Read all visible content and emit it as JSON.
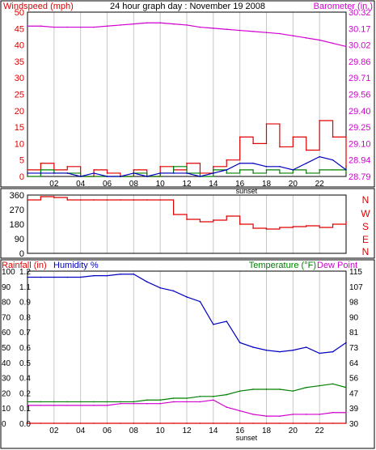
{
  "colors": {
    "red": "#e00000",
    "magenta": "#d000d0",
    "blue": "#0000c0",
    "green": "#008000",
    "grid": "#c8c8c8",
    "axis": "#000000"
  },
  "chart_data": [
    {
      "type": "line",
      "title": "24 hour graph day : November 19 2008",
      "left_label": "Windspeed (mph)",
      "right_label": "Barometer (in.)",
      "x_ticks": [
        "02",
        "04",
        "06",
        "08",
        "10",
        "12",
        "14",
        "16",
        "18",
        "20",
        "22"
      ],
      "x_annotation": "sunset",
      "ylim": [
        0,
        50
      ],
      "y_ticks": [
        "0",
        "5",
        "10",
        "15",
        "20",
        "25",
        "30",
        "35",
        "40",
        "45",
        "50"
      ],
      "y2lim": [
        28.79,
        30.32
      ],
      "y2_ticks": [
        "28.79",
        "28.94",
        "29.10",
        "29.25",
        "29.40",
        "29.56",
        "29.71",
        "29.86",
        "30.02",
        "30.17",
        "30.32"
      ],
      "grid": true,
      "x": [
        0,
        1,
        2,
        3,
        4,
        5,
        6,
        7,
        8,
        9,
        10,
        11,
        12,
        13,
        14,
        15,
        16,
        17,
        18,
        19,
        20,
        21,
        22,
        23,
        24
      ],
      "series": [
        {
          "key": "barometer",
          "axis": "right",
          "values": [
            30.19,
            30.19,
            30.18,
            30.18,
            30.18,
            30.18,
            30.19,
            30.2,
            30.21,
            30.22,
            30.22,
            30.21,
            30.2,
            30.18,
            30.17,
            30.16,
            30.15,
            30.14,
            30.13,
            30.12,
            30.1,
            30.08,
            30.06,
            30.03,
            30.0
          ]
        },
        {
          "key": "wind_gust",
          "axis": "left",
          "values": [
            2,
            4,
            2,
            3,
            0,
            2,
            1,
            0,
            2,
            0,
            3,
            2,
            4,
            1,
            3,
            5,
            12,
            10,
            16,
            9,
            12,
            8,
            17,
            12,
            3
          ]
        },
        {
          "key": "wind_avg",
          "axis": "left",
          "values": [
            1,
            1,
            1,
            1,
            0,
            1,
            0,
            0,
            1,
            0,
            1,
            1,
            1,
            0,
            1,
            2,
            4,
            4,
            3,
            3,
            2,
            4,
            6,
            5,
            2
          ]
        },
        {
          "key": "wind_dir",
          "axis": "left",
          "values": [
            0,
            2,
            1,
            1,
            0,
            0,
            0,
            0,
            1,
            0,
            1,
            3,
            1,
            0,
            2,
            1,
            2,
            1,
            2,
            1,
            2,
            1,
            2,
            2,
            1
          ]
        }
      ]
    },
    {
      "type": "line",
      "right_label": "N W S E N",
      "y_ticks": [
        "360",
        "270",
        "180",
        "90",
        "0"
      ],
      "ylim": [
        0,
        360
      ],
      "x": [
        0,
        1,
        2,
        3,
        4,
        5,
        6,
        7,
        8,
        9,
        10,
        11,
        12,
        13,
        14,
        15,
        16,
        17,
        18,
        19,
        20,
        21,
        22,
        23,
        24
      ],
      "series": [
        {
          "key": "direction",
          "values": [
            330,
            350,
            345,
            330,
            330,
            330,
            330,
            330,
            330,
            330,
            330,
            240,
            210,
            195,
            205,
            230,
            180,
            155,
            150,
            160,
            165,
            170,
            160,
            180,
            195
          ]
        }
      ]
    },
    {
      "type": "line",
      "left_label_rain": "Rainfall (in)",
      "left_label_humidity": "Humidity %",
      "right_label_temp": "Temperature (°F)",
      "right_label_dew": "Dew Point",
      "x_ticks": [
        "02",
        "04",
        "06",
        "08",
        "10",
        "12",
        "14",
        "16",
        "18",
        "20",
        "22"
      ],
      "x_annotation": "sunset",
      "humidity_ticks": [
        "0",
        "10",
        "20",
        "30",
        "40",
        "50",
        "60",
        "70",
        "80",
        "90",
        "100"
      ],
      "humidity_lim": [
        0,
        100
      ],
      "rain_ticks": [
        "0.0",
        "0.1",
        "0.2",
        "0.4",
        "0.5",
        "0.6",
        "0.7",
        "0.8",
        "0.9",
        "1.1",
        "1.2"
      ],
      "rain_lim": [
        0,
        1.2
      ],
      "temp_ticks": [
        "30",
        "39",
        "47",
        "56",
        "64",
        "73",
        "81",
        "90",
        "98",
        "107",
        "115"
      ],
      "temp_lim": [
        30,
        115
      ],
      "x": [
        0,
        1,
        2,
        3,
        4,
        5,
        6,
        7,
        8,
        9,
        10,
        11,
        12,
        13,
        14,
        15,
        16,
        17,
        18,
        19,
        20,
        21,
        22,
        23,
        24
      ],
      "series": [
        {
          "key": "humidity",
          "axis": "humidity",
          "values": [
            96,
            96,
            96,
            96,
            96,
            97,
            97,
            98,
            98,
            93,
            89,
            87,
            83,
            80,
            65,
            67,
            53,
            50,
            48,
            47,
            48,
            50,
            46,
            47,
            53
          ]
        },
        {
          "key": "temperature",
          "axis": "temp",
          "values": [
            42,
            42,
            42,
            42,
            42,
            42,
            42,
            42,
            42,
            43,
            43,
            44,
            44,
            45,
            45,
            46,
            48,
            49,
            49,
            49,
            48,
            50,
            51,
            52,
            50
          ]
        },
        {
          "key": "dew_point",
          "axis": "temp",
          "values": [
            40,
            40,
            40,
            40,
            40,
            40,
            40,
            41,
            41,
            41,
            41,
            42,
            42,
            42,
            43,
            39,
            37,
            35,
            34,
            34,
            35,
            35,
            35,
            36,
            36
          ]
        },
        {
          "key": "rainfall",
          "axis": "rain",
          "values": [
            0,
            0,
            0,
            0,
            0,
            0,
            0,
            0,
            0,
            0,
            0,
            0,
            0,
            0,
            0,
            0,
            0,
            0,
            0,
            0,
            0,
            0,
            0,
            0,
            0
          ]
        }
      ]
    }
  ]
}
